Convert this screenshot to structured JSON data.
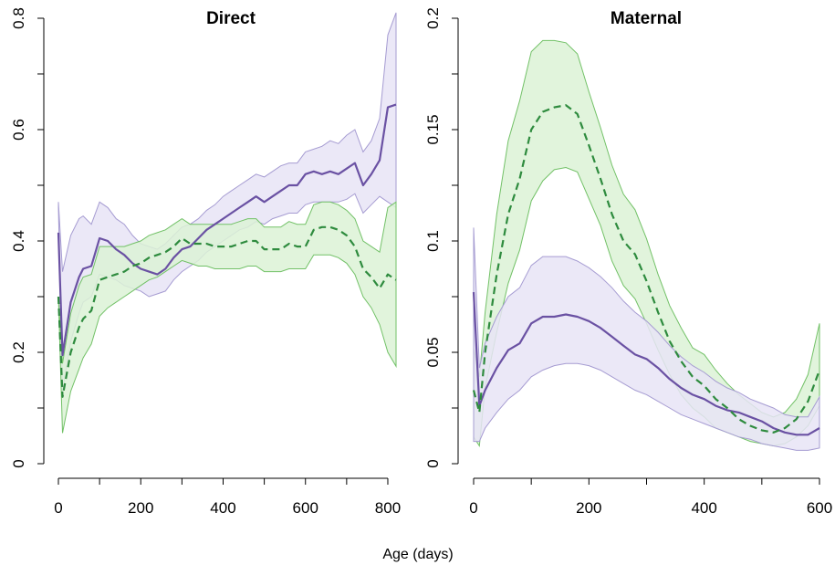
{
  "x_label": "Age (days)",
  "colors": {
    "direct_line": "#6a51a3",
    "direct_band": "#e7e4f6",
    "direct_band_edge": "#a69cd2",
    "maternal_line": "#2e8b3e",
    "maternal_band": "#dcf2d6",
    "maternal_band_edge": "#72c167"
  },
  "chart_data": [
    {
      "type": "line",
      "title": "Direct",
      "xlabel": "Age (days)",
      "ylabel": "",
      "xlim": [
        0,
        820
      ],
      "ylim": [
        0,
        0.8
      ],
      "x_ticks": [
        "0",
        "200",
        "400",
        "600",
        "800"
      ],
      "y_ticks": [
        "0",
        "0.2",
        "0.4",
        "0.6",
        "0.8"
      ],
      "grid": false,
      "series": [
        {
          "style": "solid",
          "color": "#6a51a3",
          "x": [
            0,
            10,
            30,
            50,
            60,
            80,
            100,
            120,
            140,
            160,
            180,
            200,
            220,
            240,
            260,
            280,
            300,
            320,
            340,
            360,
            380,
            400,
            420,
            440,
            460,
            480,
            500,
            520,
            540,
            560,
            580,
            600,
            620,
            640,
            660,
            680,
            700,
            720,
            740,
            760,
            780,
            800,
            820
          ],
          "y": [
            0.415,
            0.195,
            0.29,
            0.335,
            0.35,
            0.355,
            0.405,
            0.4,
            0.385,
            0.375,
            0.36,
            0.35,
            0.345,
            0.34,
            0.35,
            0.37,
            0.385,
            0.39,
            0.405,
            0.42,
            0.43,
            0.44,
            0.45,
            0.46,
            0.47,
            0.48,
            0.47,
            0.48,
            0.49,
            0.5,
            0.5,
            0.52,
            0.525,
            0.52,
            0.525,
            0.52,
            0.53,
            0.54,
            0.5,
            0.52,
            0.545,
            0.64,
            0.645
          ],
          "lower": [
            0.46,
            0.13,
            0.22,
            0.27,
            0.29,
            0.3,
            0.34,
            0.335,
            0.33,
            0.32,
            0.315,
            0.31,
            0.3,
            0.305,
            0.31,
            0.33,
            0.345,
            0.355,
            0.365,
            0.38,
            0.39,
            0.4,
            0.41,
            0.42,
            0.425,
            0.435,
            0.43,
            0.44,
            0.445,
            0.45,
            0.45,
            0.465,
            0.47,
            0.47,
            0.47,
            0.47,
            0.475,
            0.485,
            0.45,
            0.465,
            0.48,
            0.47,
            0.46
          ],
          "upper": [
            0.47,
            0.345,
            0.41,
            0.44,
            0.445,
            0.43,
            0.47,
            0.46,
            0.44,
            0.43,
            0.41,
            0.395,
            0.39,
            0.385,
            0.395,
            0.41,
            0.425,
            0.43,
            0.44,
            0.455,
            0.465,
            0.48,
            0.49,
            0.5,
            0.51,
            0.52,
            0.515,
            0.525,
            0.535,
            0.54,
            0.54,
            0.56,
            0.565,
            0.57,
            0.58,
            0.575,
            0.59,
            0.6,
            0.56,
            0.58,
            0.62,
            0.77,
            0.81
          ]
        },
        {
          "style": "dashed",
          "color": "#2e8b3e",
          "x": [
            0,
            10,
            30,
            50,
            60,
            80,
            100,
            120,
            140,
            160,
            180,
            200,
            220,
            240,
            260,
            280,
            300,
            320,
            340,
            360,
            380,
            400,
            420,
            440,
            460,
            480,
            500,
            520,
            540,
            560,
            580,
            600,
            620,
            640,
            660,
            680,
            700,
            720,
            740,
            760,
            780,
            800,
            820
          ],
          "y": [
            0.3,
            0.12,
            0.2,
            0.245,
            0.26,
            0.275,
            0.33,
            0.335,
            0.34,
            0.345,
            0.355,
            0.36,
            0.37,
            0.375,
            0.38,
            0.39,
            0.405,
            0.395,
            0.395,
            0.395,
            0.39,
            0.39,
            0.39,
            0.395,
            0.4,
            0.4,
            0.385,
            0.385,
            0.385,
            0.395,
            0.39,
            0.39,
            0.42,
            0.425,
            0.425,
            0.42,
            0.41,
            0.39,
            0.35,
            0.335,
            0.315,
            0.34,
            0.33
          ],
          "lower": [
            0.3,
            0.055,
            0.13,
            0.17,
            0.19,
            0.215,
            0.265,
            0.28,
            0.29,
            0.3,
            0.31,
            0.32,
            0.33,
            0.335,
            0.345,
            0.355,
            0.365,
            0.36,
            0.355,
            0.355,
            0.35,
            0.35,
            0.35,
            0.35,
            0.355,
            0.355,
            0.345,
            0.345,
            0.345,
            0.35,
            0.35,
            0.35,
            0.375,
            0.375,
            0.375,
            0.37,
            0.36,
            0.34,
            0.3,
            0.28,
            0.25,
            0.2,
            0.175
          ],
          "upper": [
            0.3,
            0.18,
            0.27,
            0.32,
            0.335,
            0.34,
            0.39,
            0.39,
            0.39,
            0.39,
            0.395,
            0.4,
            0.41,
            0.415,
            0.42,
            0.43,
            0.44,
            0.43,
            0.43,
            0.43,
            0.43,
            0.43,
            0.43,
            0.435,
            0.44,
            0.44,
            0.425,
            0.425,
            0.425,
            0.435,
            0.43,
            0.43,
            0.465,
            0.47,
            0.47,
            0.465,
            0.455,
            0.44,
            0.4,
            0.39,
            0.38,
            0.46,
            0.47
          ]
        }
      ]
    },
    {
      "type": "line",
      "title": "Maternal",
      "xlabel": "Age (days)",
      "ylabel": "",
      "xlim": [
        0,
        600
      ],
      "ylim": [
        0,
        0.2
      ],
      "x_ticks": [
        "0",
        "200",
        "400",
        "600"
      ],
      "y_ticks": [
        "0",
        "0.05",
        "0.1",
        "0.15",
        "0.2"
      ],
      "grid": false,
      "series": [
        {
          "style": "solid",
          "color": "#6a51a3",
          "x": [
            0,
            10,
            20,
            40,
            60,
            80,
            100,
            120,
            140,
            160,
            180,
            200,
            220,
            240,
            260,
            280,
            300,
            320,
            340,
            360,
            380,
            400,
            420,
            440,
            460,
            480,
            500,
            520,
            540,
            560,
            580,
            600
          ],
          "y": [
            0.077,
            0.026,
            0.033,
            0.043,
            0.051,
            0.054,
            0.063,
            0.066,
            0.066,
            0.067,
            0.066,
            0.064,
            0.061,
            0.057,
            0.053,
            0.049,
            0.047,
            0.043,
            0.038,
            0.034,
            0.031,
            0.029,
            0.026,
            0.024,
            0.023,
            0.021,
            0.019,
            0.016,
            0.014,
            0.013,
            0.013,
            0.016
          ],
          "lower": [
            0.01,
            0.01,
            0.016,
            0.023,
            0.029,
            0.033,
            0.039,
            0.042,
            0.044,
            0.045,
            0.045,
            0.044,
            0.042,
            0.039,
            0.036,
            0.033,
            0.031,
            0.028,
            0.025,
            0.022,
            0.02,
            0.018,
            0.016,
            0.014,
            0.012,
            0.011,
            0.009,
            0.008,
            0.007,
            0.006,
            0.006,
            0.007
          ],
          "upper": [
            0.106,
            0.043,
            0.054,
            0.066,
            0.075,
            0.079,
            0.089,
            0.093,
            0.093,
            0.093,
            0.091,
            0.088,
            0.084,
            0.079,
            0.073,
            0.068,
            0.064,
            0.059,
            0.053,
            0.048,
            0.044,
            0.041,
            0.037,
            0.034,
            0.032,
            0.029,
            0.027,
            0.025,
            0.022,
            0.021,
            0.021,
            0.03
          ]
        },
        {
          "style": "dashed",
          "color": "#2e8b3e",
          "x": [
            0,
            10,
            20,
            40,
            60,
            80,
            100,
            120,
            140,
            160,
            180,
            200,
            220,
            240,
            260,
            280,
            300,
            320,
            340,
            360,
            380,
            400,
            420,
            440,
            460,
            480,
            500,
            520,
            540,
            560,
            580,
            600
          ],
          "y": [
            0.033,
            0.023,
            0.05,
            0.085,
            0.112,
            0.128,
            0.15,
            0.158,
            0.16,
            0.161,
            0.157,
            0.143,
            0.128,
            0.112,
            0.1,
            0.094,
            0.082,
            0.068,
            0.055,
            0.046,
            0.039,
            0.035,
            0.029,
            0.025,
            0.02,
            0.017,
            0.015,
            0.014,
            0.016,
            0.02,
            0.028,
            0.042
          ],
          "lower": [
            0.012,
            0.008,
            0.034,
            0.059,
            0.081,
            0.096,
            0.118,
            0.127,
            0.132,
            0.133,
            0.131,
            0.119,
            0.107,
            0.091,
            0.08,
            0.074,
            0.063,
            0.051,
            0.04,
            0.031,
            0.025,
            0.021,
            0.016,
            0.014,
            0.012,
            0.01,
            0.009,
            0.008,
            0.009,
            0.012,
            0.017,
            0.026
          ],
          "upper": [
            0.052,
            0.039,
            0.068,
            0.112,
            0.145,
            0.163,
            0.185,
            0.19,
            0.19,
            0.189,
            0.184,
            0.167,
            0.151,
            0.134,
            0.121,
            0.114,
            0.101,
            0.085,
            0.071,
            0.061,
            0.052,
            0.049,
            0.042,
            0.036,
            0.031,
            0.027,
            0.023,
            0.021,
            0.023,
            0.029,
            0.04,
            0.063
          ]
        }
      ]
    }
  ]
}
